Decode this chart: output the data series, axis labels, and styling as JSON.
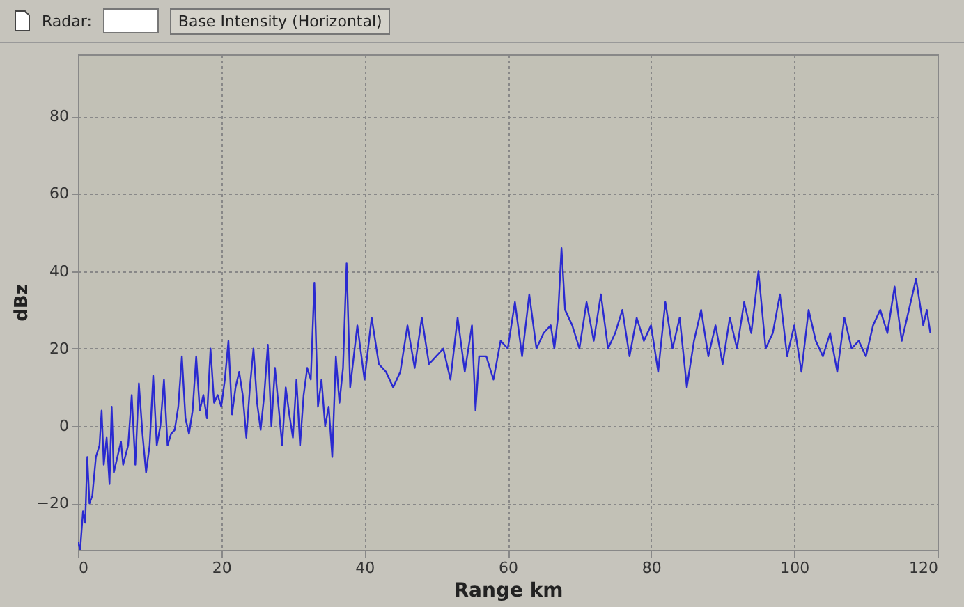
{
  "chart_data": {
    "type": "line",
    "xlabel": "Range km",
    "ylabel": "dBz",
    "annotations": [
      "Radar:",
      "Base Intensity (Horizontal)"
    ],
    "x": [
      0,
      0.3,
      0.7,
      1,
      1.3,
      1.6,
      2,
      2.5,
      3,
      3.3,
      3.6,
      4,
      4.4,
      4.7,
      5,
      5.5,
      6,
      6.3,
      7,
      7.5,
      8,
      8.5,
      9,
      9.5,
      10,
      10.5,
      11,
      11.5,
      12,
      12.5,
      13,
      13.5,
      14,
      14.5,
      15,
      15.5,
      16,
      16.5,
      17,
      17.5,
      18,
      18.5,
      19,
      19.5,
      20,
      20.5,
      21,
      21.5,
      22,
      22.5,
      23,
      23.5,
      24,
      24.5,
      25,
      25.5,
      26,
      26.5,
      27,
      27.5,
      28,
      28.5,
      29,
      29.5,
      30,
      30.5,
      31,
      31.5,
      32,
      32.5,
      33,
      33.5,
      34,
      34.5,
      35,
      35.5,
      36,
      36.5,
      37,
      37.5,
      38,
      39,
      40,
      41,
      42,
      43,
      44,
      45,
      46,
      47,
      48,
      49,
      50,
      51,
      52,
      53,
      54,
      55,
      55.5,
      56,
      57,
      58,
      59,
      60,
      61,
      62,
      63,
      64,
      65,
      66,
      66.5,
      67,
      67.5,
      68,
      69,
      70,
      71,
      72,
      73,
      74,
      75,
      76,
      77,
      78,
      79,
      80,
      81,
      82,
      83,
      84,
      85,
      86,
      87,
      88,
      89,
      90,
      91,
      92,
      93,
      94,
      95,
      96,
      97,
      98,
      99,
      100,
      101,
      102,
      103,
      104,
      105,
      106,
      107,
      108,
      109,
      110,
      111,
      112,
      113,
      114,
      115,
      116,
      117,
      118,
      118.5,
      119
    ],
    "series": [
      {
        "color": "#2a2ad0",
        "values": [
          -30,
          -32,
          -22,
          -25,
          -8,
          -20,
          -18,
          -8,
          -5,
          4,
          -10,
          -3,
          -15,
          5,
          -12,
          -8,
          -4,
          -10,
          -5,
          8,
          -10,
          11,
          -2,
          -12,
          -5,
          13,
          -5,
          0,
          12,
          -5,
          -2,
          -1,
          5,
          18,
          2,
          -2,
          4,
          18,
          4,
          8,
          2,
          20,
          6,
          8,
          5,
          12,
          22,
          3,
          10,
          14,
          8,
          -3,
          10,
          20,
          6,
          -1,
          8,
          21,
          0,
          15,
          5,
          -5,
          10,
          3,
          -3,
          12,
          -5,
          8,
          15,
          12,
          37,
          5,
          12,
          0,
          5,
          -8,
          18,
          6,
          15,
          42,
          10,
          26,
          12,
          28,
          16,
          14,
          10,
          14,
          26,
          15,
          28,
          16,
          18,
          20,
          12,
          28,
          14,
          26,
          4,
          18,
          18,
          12,
          22,
          20,
          32,
          18,
          34,
          20,
          24,
          26,
          20,
          28,
          46,
          30,
          26,
          20,
          32,
          22,
          34,
          20,
          24,
          30,
          18,
          28,
          22,
          26,
          14,
          32,
          20,
          28,
          10,
          22,
          30,
          18,
          26,
          16,
          28,
          20,
          32,
          24,
          40,
          20,
          24,
          34,
          18,
          26,
          14,
          30,
          22,
          18,
          24,
          14,
          28,
          20,
          22,
          18,
          26,
          30,
          24,
          36,
          22,
          30,
          38,
          26,
          30,
          24
        ]
      }
    ],
    "xlim": [
      0,
      120
    ],
    "xticks": [
      0,
      20,
      40,
      60,
      80,
      100,
      120
    ],
    "ylim": [
      -32,
      96
    ],
    "yticks": [
      -20,
      0,
      20,
      40,
      60,
      80
    ],
    "grid": true
  }
}
